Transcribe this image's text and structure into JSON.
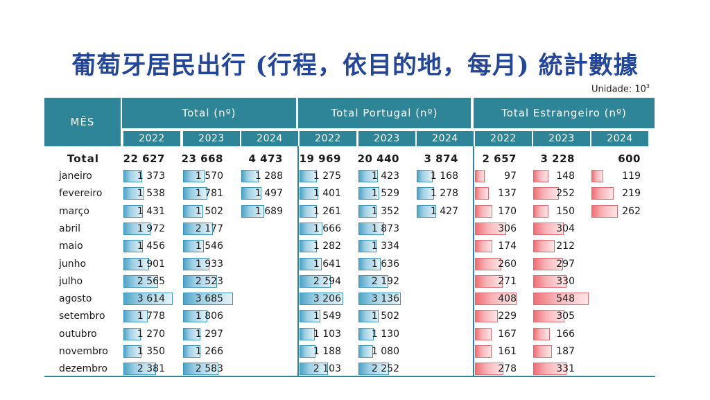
{
  "title": "葡萄牙居民出行 (行程，依目的地，每月) 統計數據",
  "unit_label": "Unidade: 10",
  "unit_exp": "3",
  "header": {
    "month_label": "MÊS",
    "groups": [
      "Total (nº)",
      "Total Portugal (nº)",
      "Total Estrangeiro (nº)"
    ],
    "years": [
      "2022",
      "2023",
      "2024"
    ]
  },
  "total_row": {
    "label": "Total",
    "values": [
      "22 627",
      "23 668",
      "4 473",
      "19 969",
      "20 440",
      "3 874",
      "2 657",
      "3 228",
      "600"
    ]
  },
  "rows": [
    {
      "month": "janeiro",
      "values": [
        "1 373",
        "1 570",
        "1 288",
        "1 275",
        "1 423",
        "1 168",
        "97",
        "148",
        "119"
      ]
    },
    {
      "month": "fevereiro",
      "values": [
        "1 538",
        "1 781",
        "1 497",
        "1 401",
        "1 529",
        "1 278",
        "137",
        "252",
        "219"
      ]
    },
    {
      "month": "março",
      "values": [
        "1 431",
        "1 502",
        "1 689",
        "1 261",
        "1 352",
        "1 427",
        "170",
        "150",
        "262"
      ]
    },
    {
      "month": "abril",
      "values": [
        "1 972",
        "2 177",
        "",
        "1 666",
        "1 873",
        "",
        "306",
        "304",
        ""
      ]
    },
    {
      "month": "maio",
      "values": [
        "1 456",
        "1 546",
        "",
        "1 282",
        "1 334",
        "",
        "174",
        "212",
        ""
      ]
    },
    {
      "month": "junho",
      "values": [
        "1 901",
        "1 933",
        "",
        "1 641",
        "1 636",
        "",
        "260",
        "297",
        ""
      ]
    },
    {
      "month": "julho",
      "values": [
        "2 565",
        "2 523",
        "",
        "2 294",
        "2 192",
        "",
        "271",
        "330",
        ""
      ]
    },
    {
      "month": "agosto",
      "values": [
        "3 614",
        "3 685",
        "",
        "3 206",
        "3 136",
        "",
        "408",
        "548",
        ""
      ]
    },
    {
      "month": "setembro",
      "values": [
        "1 778",
        "1 806",
        "",
        "1 549",
        "1 502",
        "",
        "229",
        "305",
        ""
      ]
    },
    {
      "month": "outubro",
      "values": [
        "1 270",
        "1 297",
        "",
        "1 103",
        "1 130",
        "",
        "167",
        "166",
        ""
      ]
    },
    {
      "month": "novembro",
      "values": [
        "1 350",
        "1 266",
        "",
        "1 188",
        "1 080",
        "",
        "161",
        "187",
        ""
      ]
    },
    {
      "month": "dezembro",
      "values": [
        "2 381",
        "2 583",
        "",
        "2 103",
        "2 252",
        "",
        "278",
        "331",
        ""
      ]
    }
  ],
  "colors": {
    "header": "#2f8598",
    "title": "#24469a",
    "bar_blue": "#4ea4c6",
    "bar_red": "#ef6e74"
  },
  "chart_data": {
    "type": "table",
    "title": "葡萄牙居民出行 (行程，依目的地，每月) 統計數據",
    "unit": "Unidade: 10^3",
    "series_groups": [
      "Total (nº)",
      "Total Portugal (nº)",
      "Total Estrangeiro (nº)"
    ],
    "years": [
      "2022",
      "2023",
      "2024"
    ],
    "categories": [
      "janeiro",
      "fevereiro",
      "março",
      "abril",
      "maio",
      "junho",
      "julho",
      "agosto",
      "setembro",
      "outubro",
      "novembro",
      "dezembro"
    ],
    "series": [
      {
        "name": "Total (nº) 2022",
        "values": [
          1373,
          1538,
          1431,
          1972,
          1456,
          1901,
          2565,
          3614,
          1778,
          1270,
          1350,
          2381
        ]
      },
      {
        "name": "Total (nº) 2023",
        "values": [
          1570,
          1781,
          1502,
          2177,
          1546,
          1933,
          2523,
          3685,
          1806,
          1297,
          1266,
          2583
        ]
      },
      {
        "name": "Total (nº) 2024",
        "values": [
          1288,
          1497,
          1689,
          null,
          null,
          null,
          null,
          null,
          null,
          null,
          null,
          null
        ]
      },
      {
        "name": "Total Portugal (nº) 2022",
        "values": [
          1275,
          1401,
          1261,
          1666,
          1282,
          1641,
          2294,
          3206,
          1549,
          1103,
          1188,
          2103
        ]
      },
      {
        "name": "Total Portugal (nº) 2023",
        "values": [
          1423,
          1529,
          1352,
          1873,
          1334,
          1636,
          2192,
          3136,
          1502,
          1130,
          1080,
          2252
        ]
      },
      {
        "name": "Total Portugal (nº) 2024",
        "values": [
          1168,
          1278,
          1427,
          null,
          null,
          null,
          null,
          null,
          null,
          null,
          null,
          null
        ]
      },
      {
        "name": "Total Estrangeiro (nº) 2022",
        "values": [
          97,
          137,
          170,
          306,
          174,
          260,
          271,
          408,
          229,
          167,
          161,
          278
        ]
      },
      {
        "name": "Total Estrangeiro (nº) 2023",
        "values": [
          148,
          252,
          150,
          304,
          212,
          297,
          330,
          548,
          305,
          166,
          187,
          331
        ]
      },
      {
        "name": "Total Estrangeiro (nº) 2024",
        "values": [
          119,
          219,
          262,
          null,
          null,
          null,
          null,
          null,
          null,
          null,
          null,
          null
        ]
      }
    ],
    "totals": [
      22627,
      23668,
      4473,
      19969,
      20440,
      3874,
      2657,
      3228,
      600
    ]
  }
}
